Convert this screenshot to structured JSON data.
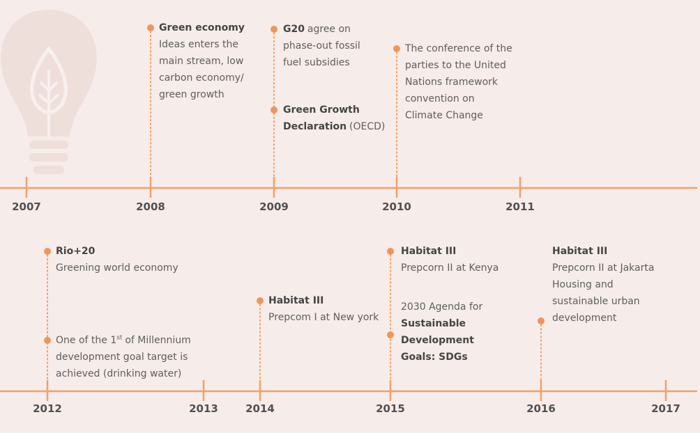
{
  "timelines": [
    {
      "years": [
        "2007",
        "2008",
        "2009",
        "2010",
        "2011"
      ],
      "events": [
        {
          "lines": [
            [
              {
                "text": "Green economy",
                "bold": true
              }
            ],
            [
              {
                "text": "Ideas enters the"
              }
            ],
            [
              {
                "text": "main stream, low"
              }
            ],
            [
              {
                "text": "carbon economy/"
              }
            ],
            [
              {
                "text": "green growth"
              }
            ]
          ]
        },
        {
          "lines": [
            [
              {
                "text": "G20",
                "bold": true
              },
              {
                "text": "agree on"
              }
            ],
            [
              {
                "text": "phase-out fossil"
              }
            ],
            [
              {
                "text": "fuel subsidies"
              }
            ]
          ]
        },
        {
          "lines": [
            [
              {
                "text": "Green Growth",
                "bold": true
              }
            ],
            [
              {
                "text": "Declaration",
                "bold": true
              },
              {
                "text": "(OECD)"
              }
            ]
          ]
        },
        {
          "lines": [
            [
              {
                "text": "The conference of the"
              }
            ],
            [
              {
                "text": "parties to the United"
              }
            ],
            [
              {
                "text": "Nations framework"
              }
            ],
            [
              {
                "text": "convention on"
              }
            ],
            [
              {
                "text": "Climate Change"
              }
            ]
          ]
        }
      ]
    },
    {
      "years": [
        "2012",
        "2013",
        "2014",
        "2015",
        "2016",
        "2017"
      ],
      "events": [
        {
          "lines": [
            [
              {
                "text": "Rio+20",
                "bold": true
              }
            ],
            [
              {
                "text": "Greening world economy"
              }
            ]
          ]
        },
        {
          "lines": [
            [
              {
                "text": "One of the 1"
              },
              {
                "text": "st",
                "sup": true
              },
              {
                "text": "of Millennium"
              }
            ],
            [
              {
                "text": "development goal target is"
              }
            ],
            [
              {
                "text": "achieved (drinking water)"
              }
            ]
          ]
        },
        {
          "lines": [
            [
              {
                "text": "Habitat III",
                "bold": true
              }
            ],
            [
              {
                "text": "Prepcom I at New york"
              }
            ]
          ]
        },
        {
          "lines": [
            [
              {
                "text": "Habitat III",
                "bold": true
              }
            ],
            [
              {
                "text": "Prepcorn II at Kenya"
              }
            ]
          ]
        },
        {
          "lines": [
            [
              {
                "text": "2030 Agenda for"
              }
            ],
            [
              {
                "text": "Sustainable",
                "bold": true
              }
            ],
            [
              {
                "text": "Development",
                "bold": true
              }
            ],
            [
              {
                "text": "Goals: SDGs",
                "bold": true
              }
            ]
          ]
        },
        {
          "lines": [
            [
              {
                "text": "Habitat III",
                "bold": true
              }
            ],
            [
              {
                "text": "Prepcorn II at Jakarta"
              }
            ],
            [
              {
                "text": "Housing and"
              }
            ],
            [
              {
                "text": "sustainable urban"
              }
            ],
            [
              {
                "text": "development"
              }
            ]
          ]
        }
      ]
    }
  ]
}
